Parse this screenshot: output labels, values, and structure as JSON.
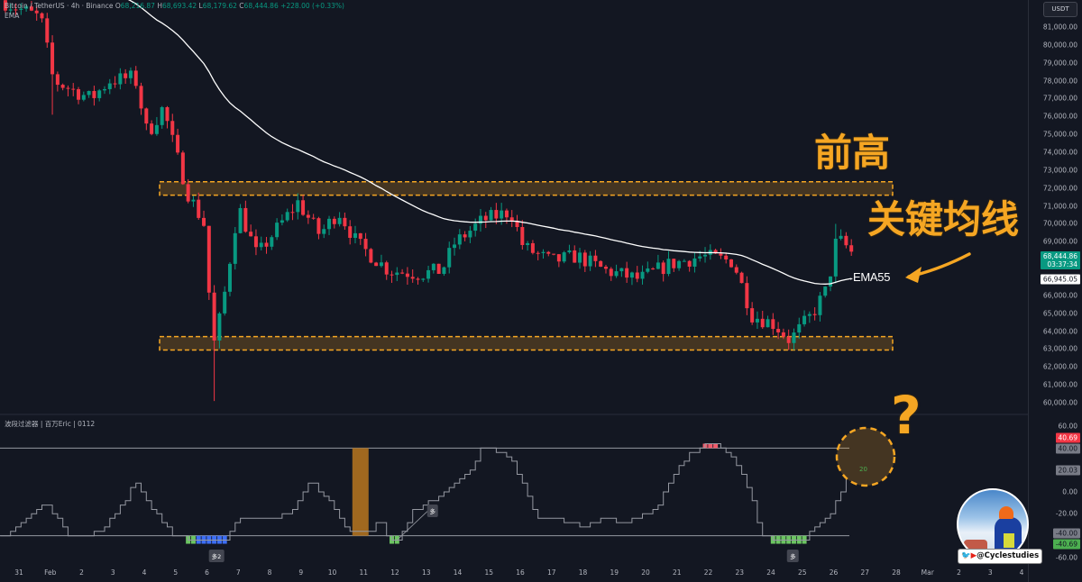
{
  "header": {
    "symbol": "Bitcoin / TetherUS · 4h · Binance",
    "open_label": "O",
    "open": "68,216.87",
    "high_label": "H",
    "high": "68,693.42",
    "low_label": "L",
    "low": "68,179.62",
    "close_label": "C",
    "close": "68,444.86",
    "change": "+228.00 (+0.33%)",
    "indicator": "EMA"
  },
  "indicator_title": "波段过滤器 | 百万Eric | 0112",
  "colors": {
    "up": "#089981",
    "down": "#f23645",
    "accent": "#f5a623",
    "ema": "#ffffff",
    "background": "#131722",
    "oscillator_blue": "#3d6ef5",
    "oscillator_green": "#6cc462"
  },
  "price_axis": {
    "currency": "USDT",
    "labels": [
      "81,000.00",
      "80,000.00",
      "79,000.00",
      "78,000.00",
      "77,000.00",
      "76,000.00",
      "75,000.00",
      "74,000.00",
      "73,000.00",
      "72,000.00",
      "71,000.00",
      "70,000.00",
      "69,000.00",
      "66,000.00",
      "65,000.00",
      "64,000.00",
      "63,000.00",
      "62,000.00",
      "61,000.00",
      "60,000.00"
    ],
    "label_values": [
      81000,
      80000,
      79000,
      78000,
      77000,
      76000,
      75000,
      74000,
      73000,
      72000,
      71000,
      70000,
      69000,
      66000,
      65000,
      64000,
      63000,
      62000,
      61000,
      60000
    ],
    "current_price": "68,444.86",
    "countdown": "03:37:34",
    "ema_value": "66,945.05"
  },
  "osc_axis": {
    "labels": [
      "60.00",
      "0.00",
      "-20.00",
      "-60.00"
    ],
    "label_values": [
      60,
      0,
      -20,
      -60
    ],
    "tags": [
      {
        "text": "40.69",
        "value": 40.69,
        "bg": "#f23645",
        "fg": "#ffffff"
      },
      {
        "text": "40.00",
        "value": 40,
        "bg": "#787b86",
        "fg": "#131722"
      },
      {
        "text": "20.03",
        "value": 20.03,
        "bg": "#787b86",
        "fg": "#131722"
      },
      {
        "text": "-40.00",
        "value": -40,
        "bg": "#787b86",
        "fg": "#131722"
      },
      {
        "text": "-40.69",
        "value": -40.69,
        "bg": "#4caf50",
        "fg": "#131722"
      }
    ]
  },
  "time_axis": [
    "31",
    "Feb",
    "2",
    "3",
    "4",
    "5",
    "6",
    "7",
    "8",
    "9",
    "10",
    "11",
    "12",
    "13",
    "14",
    "15",
    "16",
    "17",
    "18",
    "19",
    "20",
    "21",
    "22",
    "23",
    "24",
    "25",
    "26",
    "27",
    "28",
    "Mar",
    "2",
    "3",
    "4"
  ],
  "annotations": {
    "prev_high": "前高",
    "key_ma": "关键均线",
    "ema_label": "EMA55",
    "question": "?",
    "circle_value": "20",
    "badges": [
      {
        "text": "多2",
        "day": 6.3
      },
      {
        "text": "多",
        "day": 13.2
      },
      {
        "text": "多",
        "day": 24.7
      }
    ],
    "handle": "@Cyclestudies"
  },
  "chart_data": {
    "type": "candlestick",
    "title": "Bitcoin / TetherUS · 4h · Binance",
    "interval_per_day": 6,
    "x_unit": "days since Jan 31",
    "ylim": [
      59500,
      81500
    ],
    "approximate_close_path": [
      [
        -0.6,
        82500
      ],
      [
        0.7,
        81500
      ],
      [
        1.1,
        78000
      ],
      [
        2.3,
        77000
      ],
      [
        2.9,
        78000
      ],
      [
        3.7,
        78200
      ],
      [
        4.1,
        75000
      ],
      [
        4.6,
        76500
      ],
      [
        5.0,
        74000
      ],
      [
        5.4,
        71700
      ],
      [
        5.9,
        70000
      ],
      [
        6.2,
        63100
      ],
      [
        6.5,
        65400
      ],
      [
        7.0,
        71000
      ],
      [
        7.6,
        68200
      ],
      [
        8.0,
        69200
      ],
      [
        8.9,
        71200
      ],
      [
        9.6,
        69400
      ],
      [
        10.2,
        70700
      ],
      [
        10.8,
        68900
      ],
      [
        11.8,
        67400
      ],
      [
        12.8,
        67200
      ],
      [
        13.5,
        67400
      ],
      [
        13.9,
        68900
      ],
      [
        14.8,
        70200
      ],
      [
        15.7,
        70700
      ],
      [
        16.1,
        68700
      ],
      [
        17.0,
        67900
      ],
      [
        17.8,
        68200
      ],
      [
        18.7,
        67400
      ],
      [
        19.8,
        66900
      ],
      [
        20.7,
        67700
      ],
      [
        21.8,
        68200
      ],
      [
        22.8,
        67900
      ],
      [
        23.4,
        64900
      ],
      [
        24.1,
        64400
      ],
      [
        24.6,
        63500
      ],
      [
        25.3,
        64900
      ],
      [
        25.8,
        66400
      ],
      [
        26.1,
        69200
      ],
      [
        26.6,
        68445
      ]
    ],
    "wick_extremes": [
      {
        "day": 6.2,
        "low": 60100
      },
      {
        "day": 1.0,
        "low": 76100
      },
      {
        "day": 26.1,
        "high": 70000
      }
    ],
    "ema": {
      "name": "EMA55",
      "period": 55,
      "last": 66945.05
    },
    "zones": [
      {
        "name": "prev-high",
        "from": 71600,
        "to": 72350
      },
      {
        "name": "support",
        "from": 62950,
        "to": 63700
      }
    ],
    "oscillator": {
      "levels": [
        40,
        -40
      ],
      "path": [
        [
          -0.6,
          -42
        ],
        [
          0.1,
          -26
        ],
        [
          0.8,
          -11
        ],
        [
          1.1,
          -19
        ],
        [
          1.6,
          -40
        ],
        [
          2.3,
          -40
        ],
        [
          2.7,
          -32
        ],
        [
          3.3,
          -11
        ],
        [
          3.7,
          9
        ],
        [
          4.1,
          -11
        ],
        [
          4.9,
          -40
        ],
        [
          5.6,
          -43
        ],
        [
          6.6,
          -43
        ],
        [
          7.0,
          -24
        ],
        [
          8.0,
          -24
        ],
        [
          8.6,
          -20
        ],
        [
          9.3,
          9
        ],
        [
          10.0,
          -11
        ],
        [
          10.5,
          -36
        ],
        [
          10.8,
          -36
        ],
        [
          11.2,
          -38
        ],
        [
          11.5,
          -24
        ],
        [
          11.8,
          -44
        ],
        [
          12.1,
          -43
        ],
        [
          12.6,
          -16
        ],
        [
          13.2,
          -7
        ],
        [
          13.9,
          9
        ],
        [
          14.4,
          21
        ],
        [
          14.8,
          42
        ],
        [
          15.2,
          38
        ],
        [
          15.7,
          30
        ],
        [
          16.1,
          5
        ],
        [
          16.5,
          -24
        ],
        [
          17.0,
          -24
        ],
        [
          17.5,
          -28
        ],
        [
          18.1,
          -32
        ],
        [
          18.5,
          -24
        ],
        [
          19.3,
          -28
        ],
        [
          19.8,
          -24
        ],
        [
          20.4,
          -11
        ],
        [
          20.8,
          13
        ],
        [
          21.4,
          34
        ],
        [
          22.0,
          44
        ],
        [
          22.4,
          42
        ],
        [
          22.8,
          30
        ],
        [
          23.3,
          1
        ],
        [
          23.7,
          -40
        ],
        [
          24.4,
          -44
        ],
        [
          25.0,
          -44
        ],
        [
          25.3,
          -36
        ],
        [
          25.9,
          -20
        ],
        [
          26.3,
          5
        ],
        [
          26.5,
          20
        ]
      ],
      "orange_bar_day": 10.9,
      "blue_range": [
        5.6,
        6.6
      ]
    }
  }
}
